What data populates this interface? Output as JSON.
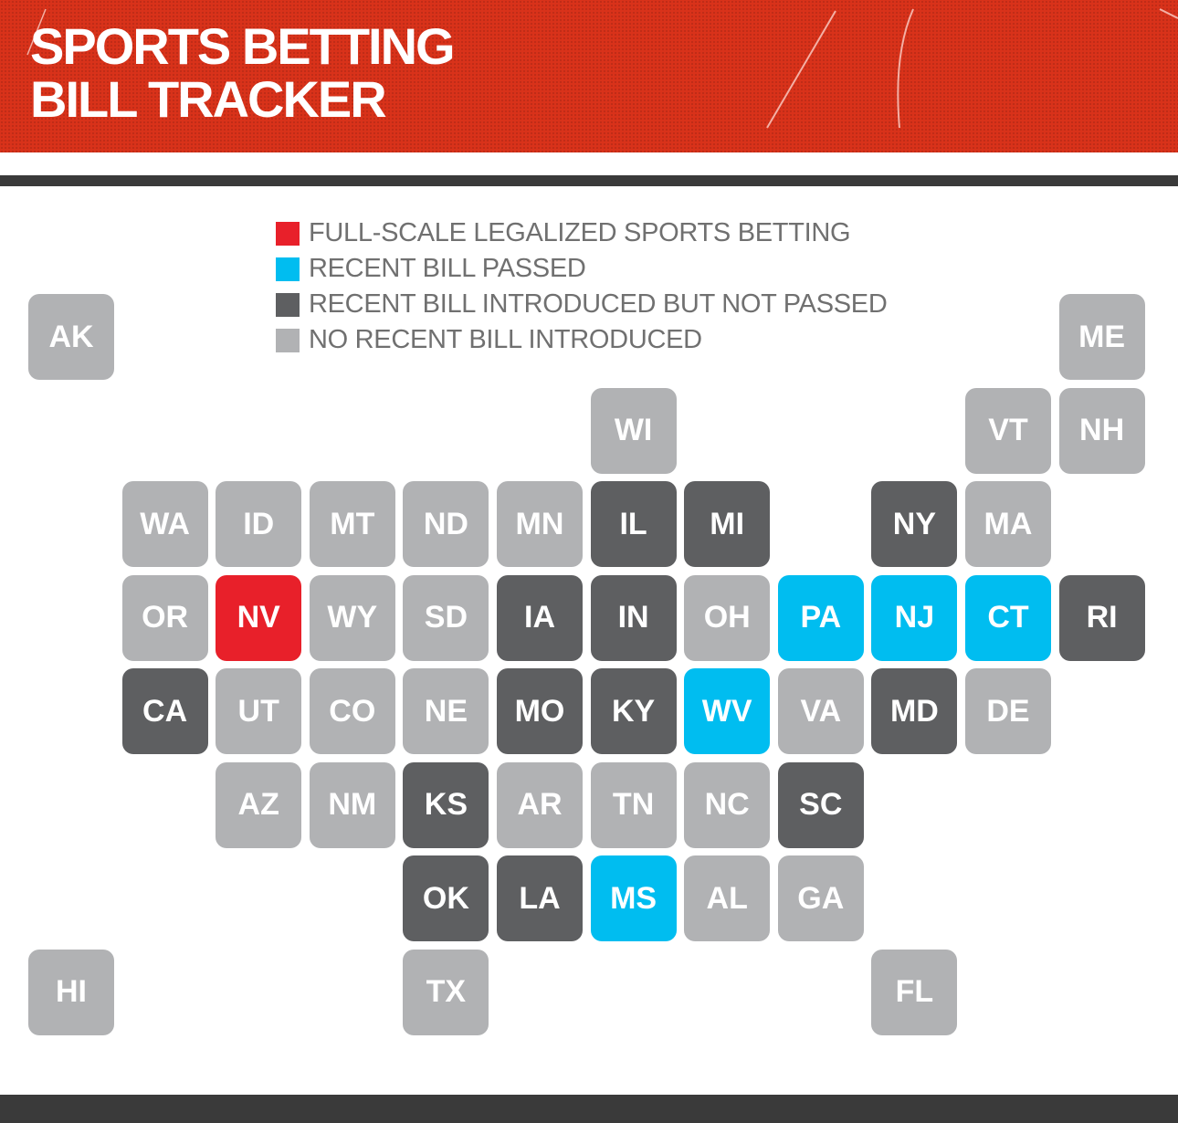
{
  "title": {
    "line1": "SPORTS BETTING",
    "line2": "BILL TRACKER"
  },
  "legend": [
    {
      "status": "legal",
      "label": "FULL-SCALE LEGALIZED SPORTS BETTING",
      "color": "#e8202a"
    },
    {
      "status": "passed",
      "label": "RECENT BILL PASSED",
      "color": "#00bdf0"
    },
    {
      "status": "introduced",
      "label": "RECENT BILL INTRODUCED BUT NOT PASSED",
      "color": "#5e5f61"
    },
    {
      "status": "none",
      "label": "NO RECENT BILL INTRODUCED",
      "color": "#b1b2b4"
    }
  ],
  "states": [
    {
      "abbr": "AK",
      "status": "none"
    },
    {
      "abbr": "ME",
      "status": "none"
    },
    {
      "abbr": "WI",
      "status": "none"
    },
    {
      "abbr": "VT",
      "status": "none"
    },
    {
      "abbr": "NH",
      "status": "none"
    },
    {
      "abbr": "WA",
      "status": "none"
    },
    {
      "abbr": "ID",
      "status": "none"
    },
    {
      "abbr": "MT",
      "status": "none"
    },
    {
      "abbr": "ND",
      "status": "none"
    },
    {
      "abbr": "MN",
      "status": "none"
    },
    {
      "abbr": "IL",
      "status": "introduced"
    },
    {
      "abbr": "MI",
      "status": "introduced"
    },
    {
      "abbr": "NY",
      "status": "introduced"
    },
    {
      "abbr": "MA",
      "status": "none"
    },
    {
      "abbr": "OR",
      "status": "none"
    },
    {
      "abbr": "NV",
      "status": "legal"
    },
    {
      "abbr": "WY",
      "status": "none"
    },
    {
      "abbr": "SD",
      "status": "none"
    },
    {
      "abbr": "IA",
      "status": "introduced"
    },
    {
      "abbr": "IN",
      "status": "introduced"
    },
    {
      "abbr": "OH",
      "status": "none"
    },
    {
      "abbr": "PA",
      "status": "passed"
    },
    {
      "abbr": "NJ",
      "status": "passed"
    },
    {
      "abbr": "CT",
      "status": "passed"
    },
    {
      "abbr": "RI",
      "status": "introduced"
    },
    {
      "abbr": "CA",
      "status": "introduced"
    },
    {
      "abbr": "UT",
      "status": "none"
    },
    {
      "abbr": "CO",
      "status": "none"
    },
    {
      "abbr": "NE",
      "status": "none"
    },
    {
      "abbr": "MO",
      "status": "introduced"
    },
    {
      "abbr": "KY",
      "status": "introduced"
    },
    {
      "abbr": "WV",
      "status": "passed"
    },
    {
      "abbr": "VA",
      "status": "none"
    },
    {
      "abbr": "MD",
      "status": "introduced"
    },
    {
      "abbr": "DE",
      "status": "none"
    },
    {
      "abbr": "AZ",
      "status": "none"
    },
    {
      "abbr": "NM",
      "status": "none"
    },
    {
      "abbr": "KS",
      "status": "introduced"
    },
    {
      "abbr": "AR",
      "status": "none"
    },
    {
      "abbr": "TN",
      "status": "none"
    },
    {
      "abbr": "NC",
      "status": "none"
    },
    {
      "abbr": "SC",
      "status": "introduced"
    },
    {
      "abbr": "OK",
      "status": "introduced"
    },
    {
      "abbr": "LA",
      "status": "introduced"
    },
    {
      "abbr": "MS",
      "status": "passed"
    },
    {
      "abbr": "AL",
      "status": "none"
    },
    {
      "abbr": "GA",
      "status": "none"
    },
    {
      "abbr": "HI",
      "status": "none"
    },
    {
      "abbr": "TX",
      "status": "none"
    },
    {
      "abbr": "FL",
      "status": "none"
    }
  ]
}
